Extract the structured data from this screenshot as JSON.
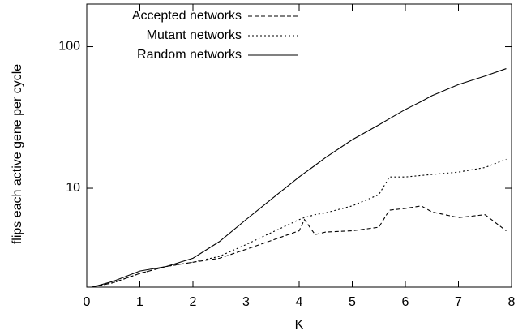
{
  "chart_data": {
    "type": "line",
    "xlabel": "K",
    "ylabel": "flips each active gene per cycle",
    "x": [
      0.1,
      0.5,
      1,
      1.5,
      2,
      2.5,
      3,
      3.5,
      4,
      4.1,
      4.3,
      4.5,
      5,
      5.5,
      5.7,
      6,
      6.3,
      6.5,
      7,
      7.5,
      7.9
    ],
    "series": [
      {
        "name": "Accepted networks",
        "color": "#000000",
        "dash": "5,3",
        "values": [
          2.0,
          2.15,
          2.5,
          2.8,
          3.0,
          3.2,
          3.7,
          4.3,
          5.0,
          6.0,
          4.7,
          4.9,
          5.0,
          5.3,
          7.0,
          7.2,
          7.5,
          6.8,
          6.2,
          6.5,
          5.0
        ]
      },
      {
        "name": "Mutant networks",
        "color": "#000000",
        "dash": "2,3",
        "values": [
          2.0,
          2.15,
          2.5,
          2.8,
          3.0,
          3.3,
          4.0,
          4.9,
          6.0,
          6.2,
          6.5,
          6.7,
          7.5,
          9.0,
          12,
          12,
          12.3,
          12.5,
          13,
          14,
          16
        ]
      },
      {
        "name": "Random networks",
        "color": "#000000",
        "dash": "none",
        "values": [
          2.0,
          2.2,
          2.6,
          2.8,
          3.2,
          4.2,
          6.0,
          8.5,
          12,
          12.8,
          14.5,
          16.5,
          22,
          28,
          31,
          36,
          41,
          45,
          54,
          62,
          70
        ]
      }
    ],
    "xlim": [
      0,
      8
    ],
    "xticks": [
      0,
      1,
      2,
      3,
      4,
      5,
      6,
      7,
      8
    ],
    "ylim": [
      2,
      200
    ],
    "yticks": [
      10,
      100
    ],
    "log_y": true,
    "legend": "top-left"
  }
}
